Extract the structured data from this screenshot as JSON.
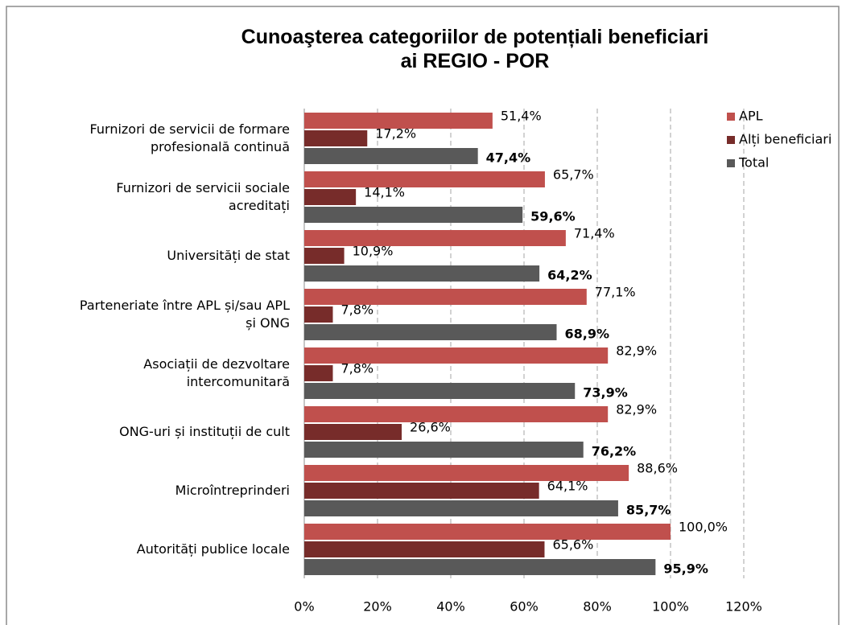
{
  "chart_data": {
    "type": "bar",
    "orientation": "horizontal",
    "title": "Cunoaşterea categoriilor de potențiali beneficiari ai REGIO - POR",
    "categories": [
      "Furnizori de servicii de formare profesională continuă",
      "Furnizori de servicii sociale acreditați",
      "Universități de stat",
      "Parteneriate între APL și/sau APL și ONG",
      "Asociații de dezvoltare intercomunitară",
      "ONG-uri și instituții de cult",
      "Microîntreprinderi",
      "Autorități publice locale"
    ],
    "series": [
      {
        "name": "APL",
        "color": "#c0504d",
        "values": [
          51.4,
          65.7,
          71.4,
          77.1,
          82.9,
          82.9,
          88.6,
          100.0
        ],
        "value_labels": [
          "51,4%",
          "65,7%",
          "71,4%",
          "77,1%",
          "82,9%",
          "82,9%",
          "88,6%",
          "100,0%"
        ]
      },
      {
        "name": "Alți beneficiari",
        "color": "#772c2a",
        "values": [
          17.2,
          14.1,
          10.9,
          7.8,
          7.8,
          26.6,
          64.1,
          65.6
        ],
        "value_labels": [
          "17,2%",
          "14,1%",
          "10,9%",
          "7,8%",
          "7,8%",
          "26,6%",
          "64,1%",
          "65,6%"
        ]
      },
      {
        "name": "Total",
        "color": "#595959",
        "bold_labels": true,
        "values": [
          47.4,
          59.6,
          64.2,
          68.9,
          73.9,
          76.2,
          85.7,
          95.9
        ],
        "value_labels": [
          "47,4%",
          "59,6%",
          "64,2%",
          "68,9%",
          "73,9%",
          "76,2%",
          "85,7%",
          "95,9%"
        ]
      }
    ],
    "xlim": [
      0,
      120
    ],
    "xticks": [
      {
        "value": 0,
        "label": "0%"
      },
      {
        "value": 20,
        "label": "20%"
      },
      {
        "value": 40,
        "label": "40%"
      },
      {
        "value": 60,
        "label": "60%"
      },
      {
        "value": 80,
        "label": "80%"
      },
      {
        "value": 100,
        "label": "100%"
      },
      {
        "value": 120,
        "label": "120%"
      }
    ],
    "grid": true,
    "legend": "top-right"
  }
}
